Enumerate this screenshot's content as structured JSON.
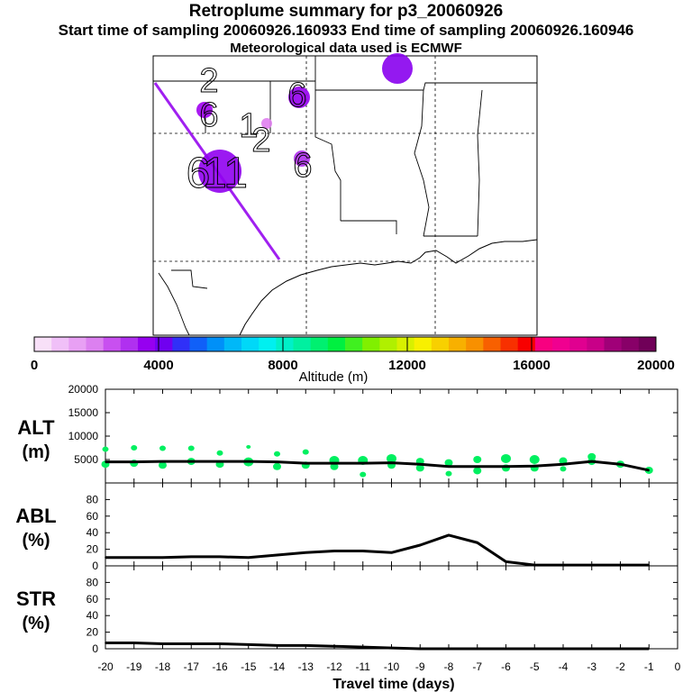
{
  "header": {
    "title": "Retroplume summary for p3_20060926",
    "sampling": "Start time of sampling 20060926.160933     End time of sampling 20060926.160946",
    "met": "Meteorological data used is ECMWF"
  },
  "map": {
    "track_color": "#a020f0",
    "plume_labels": [
      "2",
      "6",
      "6",
      "1",
      "2",
      "6",
      "6",
      "11"
    ],
    "markers": [
      {
        "name": "plume-3day",
        "color": "#8800ee",
        "size": "large"
      },
      {
        "name": "plume-6day",
        "color": "#9600f0",
        "size": "medium"
      },
      {
        "name": "plume-2day",
        "color": "#a000f0",
        "size": "small"
      },
      {
        "name": "plume-1day",
        "color": "#e080f0",
        "size": "small"
      },
      {
        "name": "plume-6day-b",
        "color": "#b030f0",
        "size": "small"
      },
      {
        "name": "plume-11day",
        "color": "#9000f0",
        "size": "large"
      }
    ]
  },
  "colorbar": {
    "colors": [
      "#f8e0f8",
      "#f0c0f8",
      "#e8a0f4",
      "#dc80f0",
      "#c850f0",
      "#b030f0",
      "#9600f0",
      "#7000f0",
      "#3030f8",
      "#1060f8",
      "#0090f8",
      "#00b8f8",
      "#00d8f8",
      "#00f0f0",
      "#00f0c8",
      "#00f0a0",
      "#00f070",
      "#00f040",
      "#40f020",
      "#80f000",
      "#b0f000",
      "#d8f000",
      "#f8f000",
      "#f8d000",
      "#f8b000",
      "#f89000",
      "#f86000",
      "#f83000",
      "#f80000",
      "#f80080",
      "#f00090",
      "#e00090",
      "#c80088",
      "#a00078",
      "#880068",
      "#700058"
    ],
    "tick_labels": [
      "0",
      "4000",
      "8000",
      "12000",
      "16000",
      "20000"
    ],
    "title": "Altitude (m)"
  },
  "chart_data": [
    {
      "type": "line",
      "name": "ALT",
      "ylabel_line1": "ALT",
      "ylabel_line2": "(m)",
      "ylim": [
        0,
        20000
      ],
      "yticks": [
        5000,
        10000,
        15000,
        20000
      ],
      "x": [
        -20,
        -19,
        -18,
        -17,
        -16,
        -15,
        -14,
        -13,
        -12,
        -11,
        -10,
        -9,
        -8,
        -7,
        -6,
        -5,
        -4,
        -3,
        -2,
        -1
      ],
      "series": [
        {
          "name": "mean altitude",
          "values": [
            4500,
            4500,
            4600,
            4600,
            4600,
            4600,
            4500,
            4200,
            4200,
            4200,
            4300,
            4000,
            3500,
            3500,
            3500,
            3600,
            4000,
            4600,
            4000,
            2700
          ]
        }
      ],
      "scatter": {
        "color": "#00f060",
        "points": [
          {
            "x": -20,
            "y": 7200,
            "r": 2
          },
          {
            "x": -20,
            "y": 4000,
            "r": 3
          },
          {
            "x": -19,
            "y": 7500,
            "r": 2
          },
          {
            "x": -19,
            "y": 4200,
            "r": 3
          },
          {
            "x": -18,
            "y": 7400,
            "r": 2
          },
          {
            "x": -18,
            "y": 3800,
            "r": 3
          },
          {
            "x": -17,
            "y": 7400,
            "r": 2
          },
          {
            "x": -17,
            "y": 4600,
            "r": 3
          },
          {
            "x": -16,
            "y": 6400,
            "r": 2
          },
          {
            "x": -16,
            "y": 4000,
            "r": 3
          },
          {
            "x": -15,
            "y": 7700,
            "r": 1
          },
          {
            "x": -15,
            "y": 4500,
            "r": 4
          },
          {
            "x": -14,
            "y": 6200,
            "r": 2
          },
          {
            "x": -14,
            "y": 3500,
            "r": 3
          },
          {
            "x": -13,
            "y": 6600,
            "r": 2
          },
          {
            "x": -13,
            "y": 3800,
            "r": 3
          },
          {
            "x": -12,
            "y": 4800,
            "r": 4
          },
          {
            "x": -12,
            "y": 3500,
            "r": 3
          },
          {
            "x": -11,
            "y": 4800,
            "r": 4
          },
          {
            "x": -11,
            "y": 1800,
            "r": 2
          },
          {
            "x": -10,
            "y": 5200,
            "r": 4
          },
          {
            "x": -10,
            "y": 3800,
            "r": 3
          },
          {
            "x": -9,
            "y": 4600,
            "r": 3
          },
          {
            "x": -9,
            "y": 3200,
            "r": 3
          },
          {
            "x": -8,
            "y": 4300,
            "r": 3
          },
          {
            "x": -8,
            "y": 2000,
            "r": 2
          },
          {
            "x": -7,
            "y": 5000,
            "r": 3
          },
          {
            "x": -7,
            "y": 2600,
            "r": 3
          },
          {
            "x": -6,
            "y": 5200,
            "r": 4
          },
          {
            "x": -6,
            "y": 3200,
            "r": 3
          },
          {
            "x": -5,
            "y": 5000,
            "r": 4
          },
          {
            "x": -5,
            "y": 3200,
            "r": 3
          },
          {
            "x": -4,
            "y": 4700,
            "r": 3
          },
          {
            "x": -4,
            "y": 3000,
            "r": 2
          },
          {
            "x": -3,
            "y": 5600,
            "r": 3
          },
          {
            "x": -3,
            "y": 4600,
            "r": 3
          },
          {
            "x": -2,
            "y": 4000,
            "r": 3
          },
          {
            "x": -1,
            "y": 2700,
            "r": 3
          }
        ]
      }
    },
    {
      "type": "line",
      "name": "ABL",
      "ylabel_line1": "ABL",
      "ylabel_line2": "(%)",
      "ylim": [
        0,
        100
      ],
      "yticks": [
        0,
        20,
        40,
        60,
        80
      ],
      "x": [
        -20,
        -19,
        -18,
        -17,
        -16,
        -15,
        -14,
        -13,
        -12,
        -11,
        -10,
        -9,
        -8,
        -7,
        -6,
        -5,
        -4,
        -3,
        -2,
        -1
      ],
      "series": [
        {
          "name": "ABL fraction",
          "values": [
            10,
            10,
            10,
            11,
            11,
            10,
            13,
            16,
            18,
            18,
            16,
            25,
            37,
            28,
            5,
            1,
            1,
            1,
            1,
            1
          ]
        }
      ]
    },
    {
      "type": "line",
      "name": "STR",
      "ylabel_line1": "STR",
      "ylabel_line2": "(%)",
      "ylim": [
        0,
        100
      ],
      "yticks": [
        0,
        20,
        40,
        60,
        80
      ],
      "x": [
        -20,
        -19,
        -18,
        -17,
        -16,
        -15,
        -14,
        -13,
        -12,
        -11,
        -10,
        -9,
        -8,
        -7,
        -6,
        -5,
        -4,
        -3,
        -2,
        -1
      ],
      "series": [
        {
          "name": "STR fraction",
          "values": [
            7,
            7,
            6,
            6,
            6,
            5,
            4,
            4,
            3,
            2,
            1,
            0,
            0,
            0,
            0,
            0,
            0,
            0,
            0,
            0
          ]
        }
      ]
    }
  ],
  "xaxis": {
    "tick_labels": [
      "-20",
      "-19",
      "-18",
      "-17",
      "-16",
      "-15",
      "-14",
      "-13",
      "-12",
      "-11",
      "-10",
      "-9",
      "-8",
      "-7",
      "-6",
      "-5",
      "-4",
      "-3",
      "-2",
      "-1",
      "0"
    ],
    "xlabel": "Travel time (days)"
  }
}
